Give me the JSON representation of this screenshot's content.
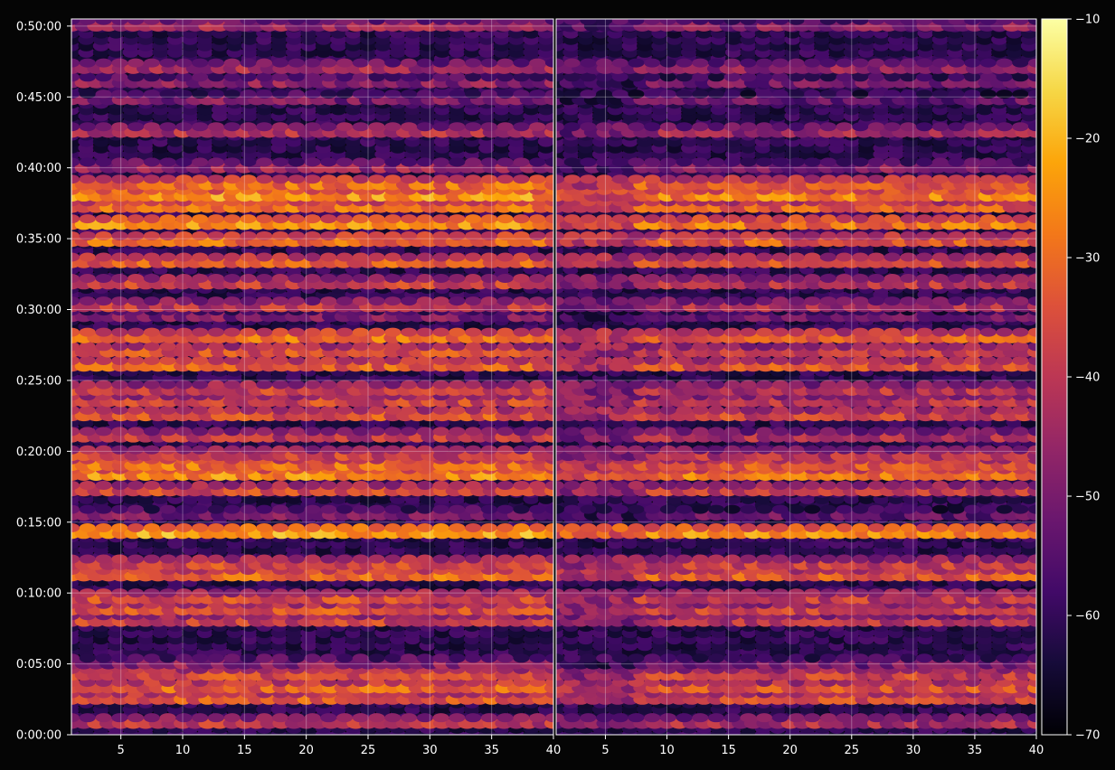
{
  "chart_data": {
    "type": "heatmap",
    "title": "",
    "xlabel": "",
    "ylabel": "",
    "grid": true,
    "colormap": "inferno",
    "background": "#050505",
    "panels": [
      {
        "name": "",
        "xlim": [
          1,
          40
        ]
      },
      {
        "name": "",
        "xlim": [
          1,
          40
        ]
      }
    ],
    "x_ticks": [
      "5",
      "10",
      "15",
      "20",
      "25",
      "30",
      "35",
      "40"
    ],
    "x_tick_values": [
      5,
      10,
      15,
      20,
      25,
      30,
      35,
      40
    ],
    "y_ticks": [
      "0:00:00",
      "0:05:00",
      "0:10:00",
      "0:15:00",
      "0:20:00",
      "0:25:00",
      "0:30:00",
      "0:35:00",
      "0:40:00",
      "0:45:00",
      "0:50:00"
    ],
    "y_tick_values_min": [
      0,
      5,
      10,
      15,
      20,
      25,
      30,
      35,
      40,
      45,
      50
    ],
    "ylim_min": [
      0,
      50.5
    ],
    "colorbar": {
      "ticks": [
        "−10",
        "−20",
        "−30",
        "−40",
        "−50",
        "−60",
        "−70"
      ],
      "tick_values": [
        -10,
        -20,
        -30,
        -40,
        -50,
        -60,
        -70
      ],
      "range": [
        -70,
        -10
      ]
    },
    "time_rows_min": [
      0.8,
      2.5,
      3.3,
      4.2,
      5.0,
      8.0,
      8.8,
      9.6,
      11.2,
      12.0,
      14.2,
      15.5,
      17.2,
      18.3,
      19.0,
      19.7,
      21.0,
      22.5,
      23.5,
      24.3,
      26.0,
      27.0,
      28.0,
      29.5,
      30.2,
      31.8,
      33.3,
      34.8,
      36.0,
      37.2,
      38.0,
      38.8,
      40.0,
      42.5,
      44.8,
      46.0,
      47.0,
      50.0
    ],
    "band_levels_db": [
      -40,
      -33,
      -32,
      -35,
      -48,
      -38,
      -35,
      -36,
      -30,
      -36,
      -23,
      -50,
      -36,
      -26,
      -30,
      -38,
      -40,
      -34,
      -37,
      -38,
      -32,
      -35,
      -30,
      -50,
      -40,
      -38,
      -33,
      -30,
      -26,
      -30,
      -25,
      -30,
      -46,
      -42,
      -50,
      -48,
      -44,
      -45
    ],
    "right_panel_offset_db": -3
  }
}
